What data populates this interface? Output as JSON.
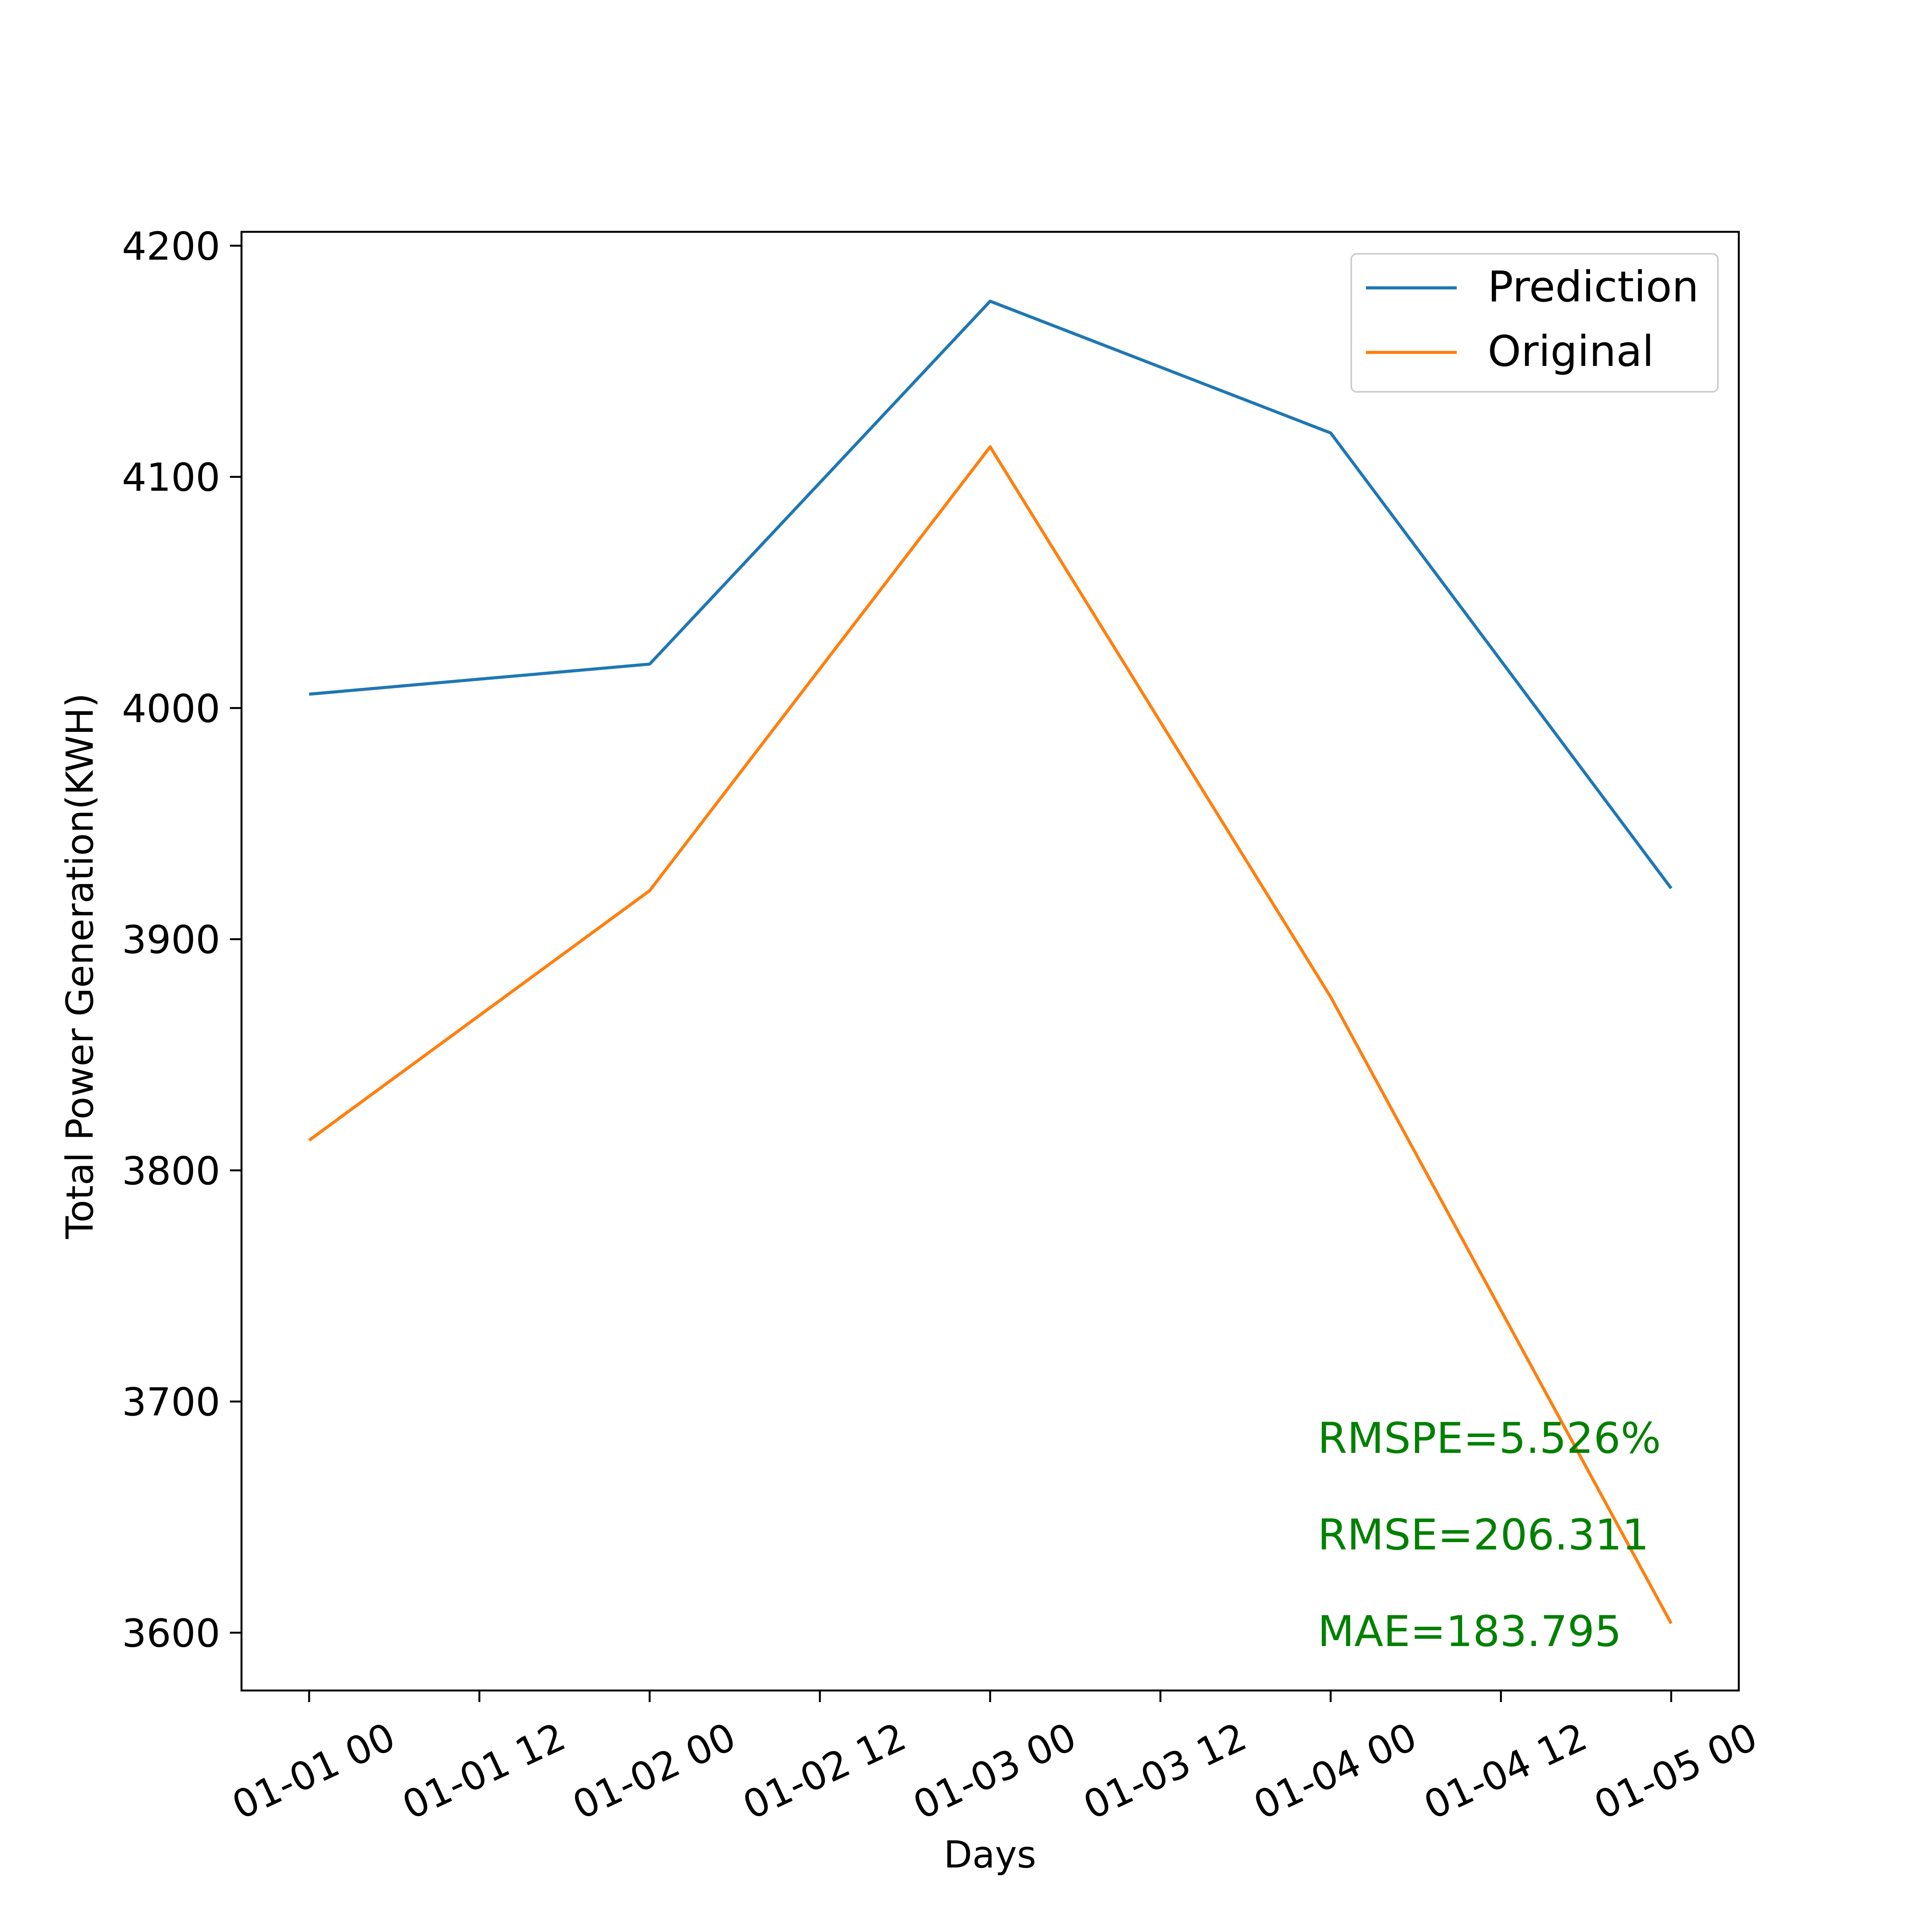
{
  "chart_data": {
    "type": "line",
    "title": "",
    "xlabel": "Days",
    "ylabel": "Total Power Generation(KWH)",
    "x": [
      "01-01 00",
      "01-02 00",
      "01-03 00",
      "01-04 00",
      "01-05 00"
    ],
    "xticks": [
      "01-01 00",
      "01-01 12",
      "01-02 00",
      "01-02 12",
      "01-03 00",
      "01-03 12",
      "01-04 00",
      "01-04 12",
      "01-05 00"
    ],
    "yticks": [
      3600,
      3700,
      3800,
      3900,
      4000,
      4100,
      4200
    ],
    "ylim": [
      3575,
      4206
    ],
    "grid": false,
    "legend_position": "top-right",
    "series": [
      {
        "name": "Prediction",
        "color": "#1f77b4",
        "values": [
          4006,
          4019,
          4176,
          4119,
          3922
        ]
      },
      {
        "name": "Original",
        "color": "#ff7f0e",
        "values": [
          3813,
          3921,
          4113,
          3875,
          3604
        ]
      }
    ],
    "annotations": [
      "RMSPE=5.526%",
      "RMSE=206.311",
      "MAE=183.795"
    ],
    "annotation_color": "#008000"
  }
}
